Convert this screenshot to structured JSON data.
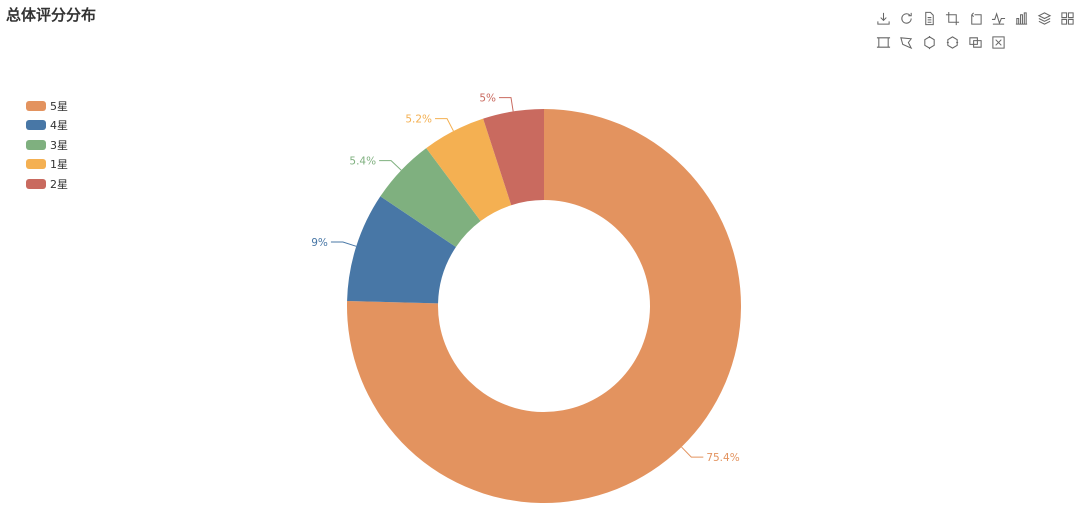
{
  "page": {
    "title": "总体评分分布"
  },
  "toolbox": {
    "row1": [
      "download-icon",
      "refresh-icon",
      "data-view-icon",
      "zoom-icon",
      "zoom-reset-icon",
      "line-chart-icon",
      "bar-chart-icon",
      "stack-icon",
      "tiled-icon"
    ],
    "row2": [
      "rect-select-icon",
      "polygon-select-icon",
      "keep-select-icon",
      "clear-select-icon",
      "copy-icon",
      "clear-icon"
    ]
  },
  "chart_data": {
    "type": "pie",
    "title": "总体评分分布",
    "legend_position": "top-left",
    "slices": [
      {
        "name": "5星",
        "value": 75.4,
        "label": "75.4%",
        "color": "#e3935f"
      },
      {
        "name": "4星",
        "value": 9,
        "label": "9%",
        "color": "#4877a6"
      },
      {
        "name": "3星",
        "value": 5.4,
        "label": "5.4%",
        "color": "#7fb07f"
      },
      {
        "name": "1星",
        "value": 5.2,
        "label": "5.2%",
        "color": "#f4b052"
      },
      {
        "name": "2星",
        "value": 5,
        "label": "5%",
        "color": "#c96a5f"
      }
    ],
    "legend_order": [
      "5星",
      "4星",
      "3星",
      "1星",
      "2星"
    ]
  }
}
